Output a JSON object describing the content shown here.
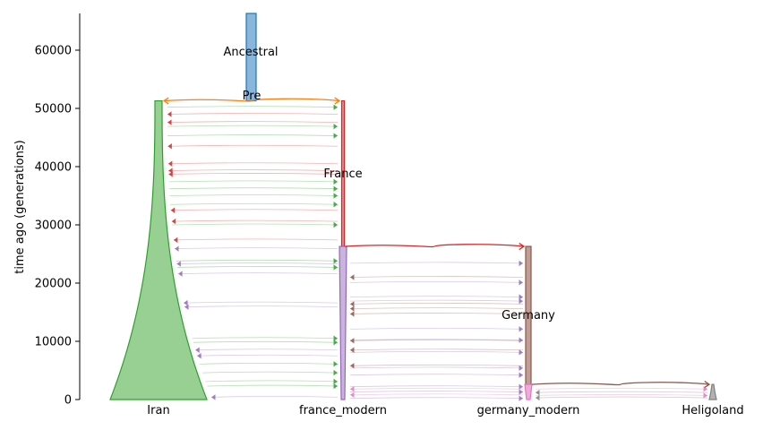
{
  "chart_data": {
    "type": "demography",
    "ylabel": "time ago (generations)",
    "ylim": [
      0,
      66000
    ],
    "yticks": [
      0,
      10000,
      20000,
      30000,
      40000,
      50000,
      60000
    ],
    "ytick_labels": [
      "0",
      "10000",
      "20000",
      "30000",
      "40000",
      "50000",
      "60000"
    ],
    "populations": [
      "Iran",
      "france_modern",
      "germany_modern",
      "Heligoland"
    ],
    "x_tick_labels": [
      "Iran",
      "france_modern",
      "germany_modern",
      "Heligoland"
    ],
    "annotations": [
      "Ancestral",
      "Pre",
      "France",
      "Germany"
    ],
    "colors": {
      "ancestral": "#1f77b4",
      "pre": "#ff7f0e",
      "iran": "#2ca02c",
      "france": "#d62728",
      "france_modern": "#9467bd",
      "germany": "#8c564b",
      "germany_modern": "#e377c2",
      "heligoland": "#7f7f7f"
    },
    "splits": [
      {
        "from": "Pre",
        "to": "Iran",
        "time": 51300
      },
      {
        "from": "Pre",
        "to": "France",
        "time": 51300
      },
      {
        "from": "France",
        "to": "Germany",
        "time": 26300
      },
      {
        "from": "Germany",
        "to": "Heligoland",
        "time": 2600
      }
    ],
    "epochs": [
      {
        "name": "Ancestral",
        "start": 66000,
        "end": 51300
      },
      {
        "name": "Iran",
        "start": 51300,
        "end": 0
      },
      {
        "name": "France",
        "start": 51300,
        "end": 26300
      },
      {
        "name": "france_modern",
        "start": 26300,
        "end": 0
      },
      {
        "name": "Germany",
        "start": 26300,
        "end": 2600
      },
      {
        "name": "germany_modern",
        "start": 2600,
        "end": 0
      },
      {
        "name": "Heligoland",
        "start": 2600,
        "end": 0
      }
    ],
    "migrations_iran_france": [
      {
        "time": 50200,
        "dir": "to-france"
      },
      {
        "time": 49000,
        "dir": "to-iran"
      },
      {
        "time": 47600,
        "dir": "to-iran"
      },
      {
        "time": 46900,
        "dir": "to-france"
      },
      {
        "time": 45300,
        "dir": "to-france"
      },
      {
        "time": 43500,
        "dir": "to-iran"
      },
      {
        "time": 40500,
        "dir": "to-iran"
      },
      {
        "time": 39300,
        "dir": "to-iran"
      },
      {
        "time": 38700,
        "dir": "to-iran"
      },
      {
        "time": 37400,
        "dir": "to-france"
      },
      {
        "time": 36200,
        "dir": "to-france"
      },
      {
        "time": 35000,
        "dir": "to-france"
      },
      {
        "time": 33500,
        "dir": "to-france"
      },
      {
        "time": 32500,
        "dir": "to-iran"
      },
      {
        "time": 30600,
        "dir": "to-iran"
      },
      {
        "time": 30000,
        "dir": "to-france"
      },
      {
        "time": 27400,
        "dir": "to-iran"
      },
      {
        "time": 25900,
        "dir": "to-iran"
      },
      {
        "time": 23800,
        "dir": "to-france"
      },
      {
        "time": 23300,
        "dir": "to-iran"
      },
      {
        "time": 22700,
        "dir": "to-france"
      },
      {
        "time": 21600,
        "dir": "to-iran"
      },
      {
        "time": 16600,
        "dir": "to-iran"
      },
      {
        "time": 15900,
        "dir": "to-iran"
      },
      {
        "time": 10500,
        "dir": "to-france"
      },
      {
        "time": 9800,
        "dir": "to-france"
      },
      {
        "time": 8500,
        "dir": "to-iran"
      },
      {
        "time": 7500,
        "dir": "to-iran"
      },
      {
        "time": 6100,
        "dir": "to-france"
      },
      {
        "time": 4600,
        "dir": "to-france"
      },
      {
        "time": 3100,
        "dir": "to-france"
      },
      {
        "time": 2300,
        "dir": "to-france"
      },
      {
        "time": 400,
        "dir": "to-iran"
      }
    ],
    "migrations_france_germany": [
      {
        "time": 23400,
        "dir": "to-germany"
      },
      {
        "time": 21000,
        "dir": "to-france"
      },
      {
        "time": 20100,
        "dir": "to-germany"
      },
      {
        "time": 17600,
        "dir": "to-germany"
      },
      {
        "time": 16900,
        "dir": "to-germany"
      },
      {
        "time": 16400,
        "dir": "to-france"
      },
      {
        "time": 15600,
        "dir": "to-france"
      },
      {
        "time": 14700,
        "dir": "to-france"
      },
      {
        "time": 12100,
        "dir": "to-germany"
      },
      {
        "time": 10100,
        "dir": "to-france"
      },
      {
        "time": 10200,
        "dir": "to-germany"
      },
      {
        "time": 8500,
        "dir": "to-france"
      },
      {
        "time": 8100,
        "dir": "to-germany"
      },
      {
        "time": 5800,
        "dir": "to-france"
      },
      {
        "time": 5400,
        "dir": "to-germany"
      },
      {
        "time": 4200,
        "dir": "to-germany"
      },
      {
        "time": 2200,
        "dir": "to-germany"
      },
      {
        "time": 1800,
        "dir": "to-france"
      },
      {
        "time": 1300,
        "dir": "to-germany"
      },
      {
        "time": 800,
        "dir": "to-france"
      },
      {
        "time": 200,
        "dir": "to-germany"
      }
    ],
    "migrations_germany_heligoland": [
      {
        "time": 1800,
        "dir": "to-heligoland"
      },
      {
        "time": 1200,
        "dir": "to-germany"
      },
      {
        "time": 700,
        "dir": "to-heligoland"
      },
      {
        "time": 300,
        "dir": "to-germany"
      }
    ]
  }
}
